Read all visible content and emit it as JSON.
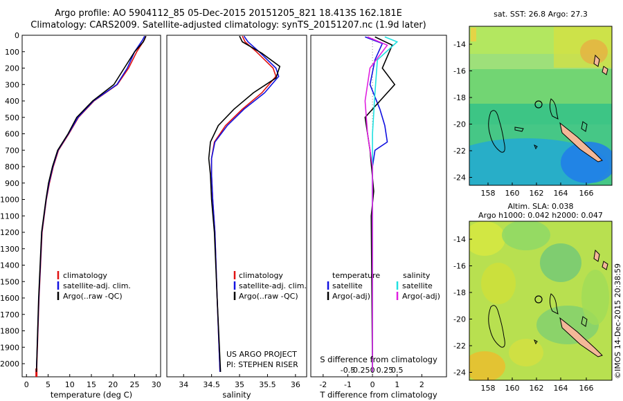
{
  "header": {
    "title_line1": "Argo profile: AO 5904112_85 05-Dec-2015 20151205_821 18.413S 162.181E",
    "title_line2": "Climatology: CARS2009. Satellite-adjusted climatology: synTS_20151207.nc (1.9d later)"
  },
  "colors": {
    "climatology": "#e01010",
    "satellite": "#1010e0",
    "argo": "#000000",
    "sat_salinity": "#20e0e0",
    "argo_salinity": "#e020e0"
  },
  "chart_data": [
    {
      "type": "line",
      "panel": "temperature",
      "xlabel": "temperature (deg C)",
      "xlim": [
        -1,
        31
      ],
      "xticks": [
        0,
        5,
        10,
        15,
        20,
        25,
        30
      ],
      "ylim": [
        2080,
        0
      ],
      "yticks": [
        0,
        100,
        200,
        300,
        400,
        500,
        600,
        700,
        800,
        900,
        1000,
        1100,
        1200,
        1300,
        1400,
        1500,
        1600,
        1700,
        1800,
        1900,
        2000
      ],
      "legend": [
        "climatology",
        "satellite-adj. clim.",
        "Argo(..raw -QC)"
      ],
      "series": [
        {
          "name": "climatology",
          "color": "#e01010",
          "x": [
            27.6,
            27.2,
            25.5,
            23.6,
            21.0,
            15.6,
            12.0,
            9.8,
            7.4,
            6.2,
            5.3,
            4.6,
            3.6,
            2.9,
            2.35
          ],
          "y": [
            5,
            30,
            100,
            200,
            300,
            400,
            500,
            600,
            700,
            800,
            900,
            1000,
            1200,
            1600,
            2050
          ]
        },
        {
          "name": "satellite-adj. clim.",
          "color": "#1010e0",
          "x": [
            27.3,
            26.8,
            25.0,
            23.3,
            20.9,
            15.5,
            11.9,
            9.7,
            7.3,
            6.1,
            5.2,
            4.55,
            3.55,
            2.85,
            2.3
          ],
          "y": [
            5,
            30,
            100,
            200,
            300,
            400,
            500,
            600,
            700,
            800,
            900,
            1000,
            1200,
            1600,
            2050
          ]
        },
        {
          "name": "Argo(..raw -QC)",
          "color": "#000000",
          "x": [
            27.6,
            27.0,
            25.0,
            22.6,
            20.2,
            15.3,
            11.6,
            9.6,
            7.2,
            6.0,
            5.1,
            4.5,
            3.5,
            2.8,
            2.3
          ],
          "y": [
            5,
            40,
            100,
            200,
            300,
            400,
            500,
            600,
            700,
            800,
            900,
            1000,
            1200,
            1600,
            2050
          ]
        }
      ],
      "annotation": []
    },
    {
      "type": "line",
      "panel": "salinity",
      "xlabel": "salinity",
      "xlim": [
        33.7,
        36.2
      ],
      "xticks": [
        34,
        34.5,
        35,
        35.5,
        36
      ],
      "legend": [
        "climatology",
        "satellite-adj. clim.",
        "Argo(..raw -QC)"
      ],
      "series": [
        {
          "name": "climatology",
          "color": "#e01010",
          "x": [
            35.05,
            35.1,
            35.3,
            35.6,
            35.65,
            35.4,
            35.05,
            34.75,
            34.55,
            34.5,
            34.5,
            34.52,
            34.56,
            34.6,
            34.65
          ],
          "y": [
            5,
            40,
            100,
            200,
            250,
            350,
            450,
            550,
            650,
            750,
            850,
            1000,
            1200,
            1600,
            2050
          ]
        },
        {
          "name": "satellite-adj. clim.",
          "color": "#1010e0",
          "x": [
            35.08,
            35.15,
            35.35,
            35.65,
            35.7,
            35.45,
            35.08,
            34.78,
            34.56,
            34.5,
            34.5,
            34.52,
            34.56,
            34.6,
            34.65
          ],
          "y": [
            5,
            40,
            100,
            200,
            250,
            350,
            450,
            550,
            650,
            750,
            850,
            1000,
            1200,
            1600,
            2050
          ]
        },
        {
          "name": "Argo(..raw -QC)",
          "color": "#000000",
          "x": [
            35.0,
            35.05,
            35.4,
            35.72,
            35.65,
            35.25,
            34.9,
            34.62,
            34.48,
            34.45,
            34.48,
            34.5,
            34.55,
            34.6,
            34.66
          ],
          "y": [
            5,
            40,
            110,
            190,
            260,
            350,
            450,
            550,
            650,
            750,
            850,
            1000,
            1200,
            1600,
            2050
          ]
        }
      ],
      "annotation": [
        "US ARGO PROJECT",
        "PI: STEPHEN RISER"
      ]
    },
    {
      "type": "line",
      "panel": "difference",
      "xlabel": "T difference from climatology",
      "xlim": [
        -2.5,
        3
      ],
      "xticks": [
        -2,
        -1,
        0,
        1,
        2
      ],
      "top_axis_label": "S difference from climatology",
      "top_xticks": [
        "-0.5",
        "-0.25",
        "0",
        "0.25",
        "0.5"
      ],
      "legend_titles": [
        "temperature",
        "salinity"
      ],
      "legend": [
        "satellite",
        "Argo(-adj)",
        "satellite",
        "Argo(-adj)"
      ],
      "series": [
        {
          "name": "temperature satellite",
          "color": "#1010e0",
          "x": [
            -0.3,
            0.4,
            0.1,
            -0.1,
            0.3,
            0.5,
            0.6,
            0.1,
            0,
            0,
            0
          ],
          "y": [
            10,
            50,
            150,
            300,
            450,
            550,
            650,
            700,
            800,
            1200,
            2050
          ]
        },
        {
          "name": "temperature Argo(-adj)",
          "color": "#000000",
          "x": [
            0.1,
            0.8,
            0.4,
            0.9,
            0.3,
            -0.3,
            -0.2,
            -0.1,
            0.05,
            -0.05,
            0
          ],
          "y": [
            10,
            60,
            200,
            300,
            400,
            500,
            600,
            700,
            950,
            1100,
            2050
          ]
        },
        {
          "name": "salinity satellite",
          "color": "#20e0e0",
          "x": [
            0.5,
            1.0,
            0.2,
            0.1,
            0,
            0
          ],
          "y": [
            10,
            40,
            150,
            350,
            600,
            2050
          ]
        },
        {
          "name": "salinity Argo(-adj)",
          "color": "#e020e0",
          "x": [
            -0.2,
            0.6,
            -0.1,
            -0.3,
            -0.2,
            0,
            0
          ],
          "y": [
            10,
            60,
            200,
            400,
            600,
            800,
            2050
          ]
        }
      ]
    }
  ],
  "maps": [
    {
      "title": "sat. SST: 26.8 Argo: 27.3",
      "title2": "",
      "lon_ticks": [
        "158",
        "160",
        "162",
        "164",
        "166"
      ],
      "lat_ticks": [
        "-14",
        "-16",
        "-18",
        "-20",
        "-22",
        "-24"
      ]
    },
    {
      "title": "Altim. SLA: 0.038",
      "title2": "Argo h1000: 0.042 h2000: 0.047",
      "lon_ticks": [
        "158",
        "160",
        "162",
        "164",
        "166"
      ],
      "lat_ticks": [
        "-14",
        "-16",
        "-18",
        "-20",
        "-22",
        "-24"
      ]
    }
  ],
  "credit": "©IMOS 14-Dec-2015 20:38:59"
}
